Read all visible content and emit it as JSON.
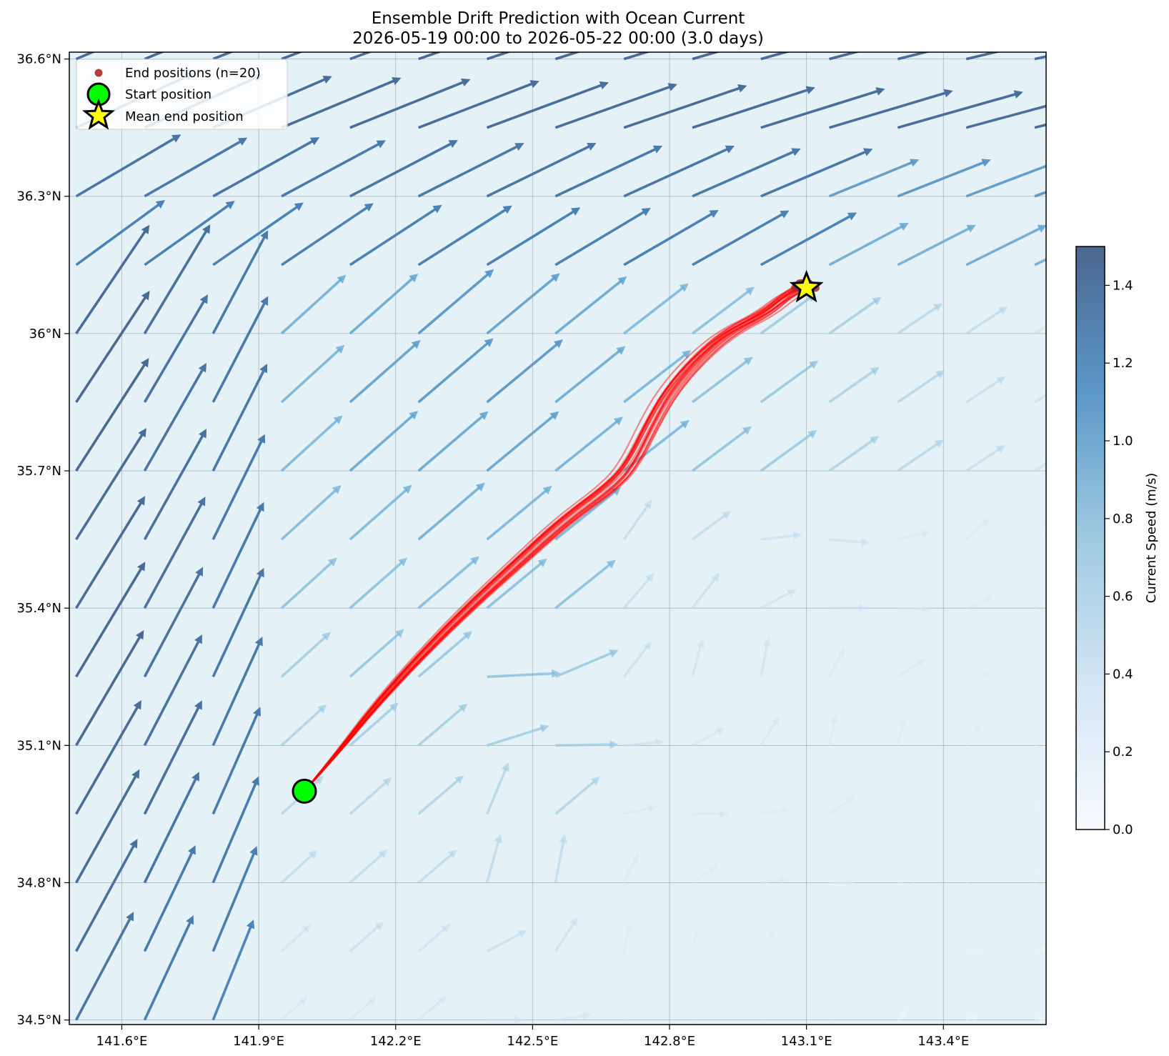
{
  "chart_data": {
    "type": "scatter",
    "title": "Ensemble Drift Prediction with Ocean Current",
    "subtitle": "2026-05-19 00:00 to 2026-05-22 00:00 (3.0 days)",
    "xlim": [
      141.485,
      143.625
    ],
    "ylim": [
      34.49,
      36.615
    ],
    "x_ticks": [
      141.6,
      141.9,
      142.2,
      142.5,
      142.8,
      143.1,
      143.4
    ],
    "x_tick_labels": [
      "141.6°E",
      "141.9°E",
      "142.2°E",
      "142.5°E",
      "142.8°E",
      "143.1°E",
      "143.4°E"
    ],
    "y_ticks": [
      34.5,
      34.8,
      35.1,
      35.4,
      35.7,
      36.0,
      36.3,
      36.6
    ],
    "y_tick_labels": [
      "34.5°N",
      "34.8°N",
      "35.1°N",
      "35.4°N",
      "35.7°N",
      "36°N",
      "36.3°N",
      "36.6°N"
    ],
    "grid": true,
    "legend_position": "top-left",
    "legend": {
      "end_positions": "End positions (n=20)",
      "start_position": "Start position",
      "mean_end_position": "Mean end position"
    },
    "colorbar": {
      "label": "Current Speed (m/s)",
      "range": [
        0,
        1.5
      ],
      "ticks": [
        0.0,
        0.2,
        0.4,
        0.6,
        0.8,
        1.0,
        1.2,
        1.4
      ],
      "tick_labels": [
        "0.0",
        "0.2",
        "0.4",
        "0.6",
        "0.8",
        "1.0",
        "1.2",
        "1.4"
      ]
    },
    "start_position": [
      142.0,
      35.0
    ],
    "mean_end_position": [
      143.1,
      36.1
    ],
    "mean_trajectory": [
      [
        142.0,
        35.0
      ],
      [
        142.07,
        35.08
      ],
      [
        142.15,
        35.18
      ],
      [
        142.25,
        35.29
      ],
      [
        142.36,
        35.4
      ],
      [
        142.47,
        35.5
      ],
      [
        142.57,
        35.59
      ],
      [
        142.68,
        35.67
      ],
      [
        142.72,
        35.72
      ],
      [
        142.76,
        35.8
      ],
      [
        142.8,
        35.87
      ],
      [
        142.86,
        35.94
      ],
      [
        142.93,
        36.0
      ],
      [
        143.01,
        36.04
      ],
      [
        143.06,
        36.08
      ],
      [
        143.1,
        36.1
      ]
    ],
    "end_positions": [
      [
        143.08,
        36.1
      ],
      [
        143.085,
        36.11
      ],
      [
        143.09,
        36.1
      ],
      [
        143.095,
        36.11
      ],
      [
        143.1,
        36.105
      ],
      [
        143.105,
        36.11
      ],
      [
        143.11,
        36.1
      ],
      [
        143.09,
        36.105
      ],
      [
        143.1,
        36.1
      ],
      [
        143.095,
        36.1
      ],
      [
        143.105,
        36.105
      ],
      [
        143.085,
        36.1
      ],
      [
        143.1,
        36.11
      ],
      [
        143.09,
        36.11
      ],
      [
        143.11,
        36.105
      ],
      [
        143.095,
        36.105
      ],
      [
        143.1,
        36.095
      ],
      [
        143.105,
        36.1
      ],
      [
        143.12,
        36.1
      ],
      [
        143.075,
        36.1
      ]
    ],
    "colors": {
      "background": "#e4f2f7",
      "trajectory": "#ff0000",
      "end_marker": "#a52a2a",
      "start_marker": "#00ff00",
      "mean_marker": "#ffff00",
      "colormap_low": "#f7fbff",
      "colormap_mid": "#6aaed6",
      "colormap_high": "#4a6690"
    }
  }
}
